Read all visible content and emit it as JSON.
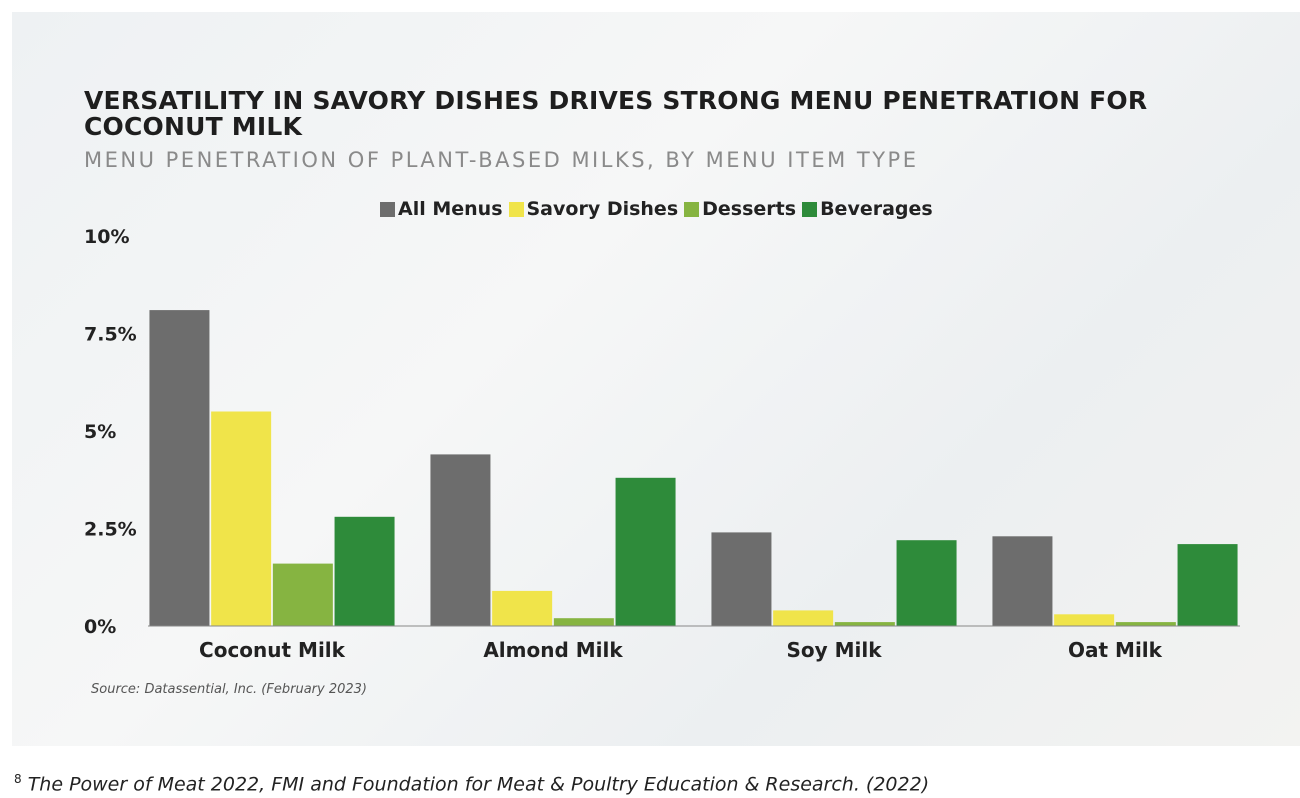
{
  "chart_data": {
    "type": "bar",
    "title": "VERSATILITY IN SAVORY DISHES DRIVES STRONG MENU PENETRATION FOR COCONUT MILK",
    "subtitle": "MENU PENETRATION OF PLANT-BASED MILKS, BY MENU ITEM TYPE",
    "categories": [
      "Coconut Milk",
      "Almond Milk",
      "Soy Milk",
      "Oat Milk"
    ],
    "series": [
      {
        "name": "All Menus",
        "color": "#6d6d6d",
        "values": [
          8.1,
          4.4,
          2.4,
          2.3
        ]
      },
      {
        "name": "Savory Dishes",
        "color": "#f0e44a",
        "values": [
          5.5,
          0.9,
          0.4,
          0.3
        ]
      },
      {
        "name": "Desserts",
        "color": "#86b441",
        "values": [
          1.6,
          0.2,
          0.1,
          0.1
        ]
      },
      {
        "name": "Beverages",
        "color": "#2e8b3a",
        "values": [
          2.8,
          3.8,
          2.2,
          2.1
        ]
      }
    ],
    "yticks": [
      "0%",
      "2.5%",
      "5%",
      "7.5%",
      "10%"
    ],
    "ytick_values": [
      0,
      2.5,
      5,
      7.5,
      10
    ],
    "ylim": [
      0,
      10
    ],
    "xlabel": "",
    "ylabel": "",
    "grid": false,
    "legend_placement": "top-center",
    "source": "Source: Datassential, Inc. (February 2023)"
  },
  "footnote": {
    "number": "8",
    "text": "The Power of Meat 2022, FMI and Foundation for Meat & Poultry Education & Research. (2022)"
  }
}
